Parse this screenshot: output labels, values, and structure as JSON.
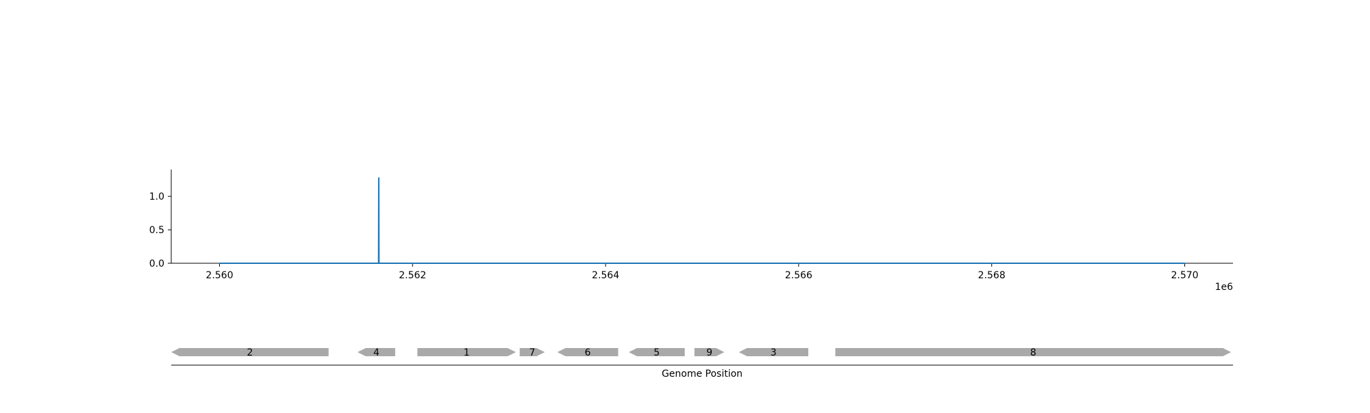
{
  "chart_data": [
    {
      "type": "line",
      "title": "",
      "xlabel": "",
      "ylabel": "",
      "x_offset_label": "1e6",
      "xlim": [
        2559500,
        2570500
      ],
      "ylim": [
        0,
        1.4
      ],
      "x_ticks": [
        2560000,
        2562000,
        2564000,
        2566000,
        2568000,
        2570000
      ],
      "x_tick_labels": [
        "2.560",
        "2.562",
        "2.564",
        "2.566",
        "2.568",
        "2.570"
      ],
      "y_ticks": [
        0.0,
        0.5,
        1.0
      ],
      "y_tick_labels": [
        "0.0",
        "0.5",
        "1.0"
      ],
      "grid": false,
      "line_color": "#1f77b4",
      "series": [
        {
          "x": [
            2560000,
            2561648,
            2561650,
            2561652,
            2570000
          ],
          "y": [
            0,
            0,
            1.28,
            0,
            0
          ]
        }
      ]
    },
    {
      "type": "gene-track",
      "xlabel": "Genome Position",
      "xlim": [
        2559500,
        2570500
      ],
      "gene_color": "#a9a9a9",
      "genes": [
        {
          "label": "2",
          "start": 2559500,
          "end": 2561130,
          "strand": "-"
        },
        {
          "label": "4",
          "start": 2561430,
          "end": 2561820,
          "strand": "-"
        },
        {
          "label": "1",
          "start": 2562050,
          "end": 2563070,
          "strand": "+"
        },
        {
          "label": "7",
          "start": 2563110,
          "end": 2563370,
          "strand": "+"
        },
        {
          "label": "6",
          "start": 2563500,
          "end": 2564130,
          "strand": "-"
        },
        {
          "label": "5",
          "start": 2564240,
          "end": 2564820,
          "strand": "-"
        },
        {
          "label": "9",
          "start": 2564920,
          "end": 2565230,
          "strand": "+"
        },
        {
          "label": "3",
          "start": 2565380,
          "end": 2566100,
          "strand": "-"
        },
        {
          "label": "8",
          "start": 2566380,
          "end": 2570480,
          "strand": "+"
        }
      ]
    }
  ]
}
